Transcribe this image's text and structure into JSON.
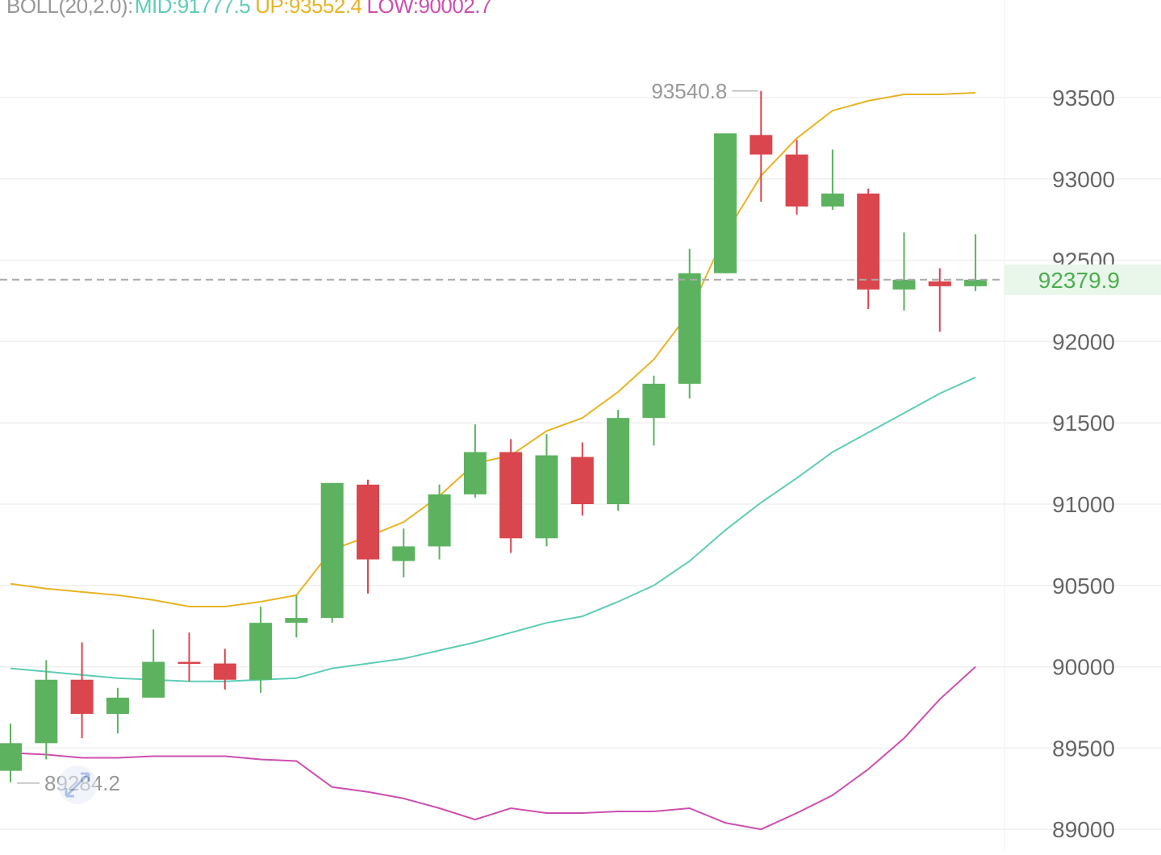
{
  "legend": {
    "name": "BOLL(20,2.0):",
    "mid_label": "MID:",
    "mid": "91777.5",
    "up_label": "UP:",
    "up": "93552.4",
    "low_label": "LOW:",
    "low": "90002.7"
  },
  "colors": {
    "up_candle": "#5cb25f",
    "down_candle": "#d9464d",
    "mid_line": "#5ecdb5",
    "upper_line": "#e8b425",
    "lower_line": "#cc4fb0",
    "grid": "#efefef",
    "current_price": "#4caf50",
    "legend_name": "#999999"
  },
  "chart_data": {
    "type": "candlestick",
    "y_ticks": [
      93500,
      93000,
      92500,
      92000,
      91500,
      91000,
      90500,
      90000,
      89500,
      89000
    ],
    "ylim": [
      88990,
      93600
    ],
    "grid": true,
    "current_price": "92379.9",
    "current_price_value": 92379.9,
    "max_marker": {
      "label": "93540.8",
      "value": 93540.8,
      "index": 21
    },
    "min_marker": {
      "label": "89284.2",
      "value": 89284.2,
      "index": 0
    },
    "candles": [
      {
        "o": 89360,
        "c": 89530,
        "h": 89650,
        "l": 89290
      },
      {
        "o": 89530,
        "c": 89920,
        "h": 90040,
        "l": 89430
      },
      {
        "o": 89920,
        "c": 89710,
        "h": 90150,
        "l": 89560
      },
      {
        "o": 89710,
        "c": 89810,
        "h": 89870,
        "l": 89590
      },
      {
        "o": 89810,
        "c": 90030,
        "h": 90230,
        "l": 89810
      },
      {
        "o": 90030,
        "c": 90020,
        "h": 90210,
        "l": 89910
      },
      {
        "o": 90020,
        "c": 89920,
        "h": 90110,
        "l": 89860
      },
      {
        "o": 89920,
        "c": 90270,
        "h": 90370,
        "l": 89840
      },
      {
        "o": 90270,
        "c": 90300,
        "h": 90440,
        "l": 90180
      },
      {
        "o": 90300,
        "c": 91130,
        "h": 91130,
        "l": 90270
      },
      {
        "o": 91120,
        "c": 90660,
        "h": 91150,
        "l": 90450
      },
      {
        "o": 90650,
        "c": 90740,
        "h": 90850,
        "l": 90550
      },
      {
        "o": 90740,
        "c": 91060,
        "h": 91120,
        "l": 90660
      },
      {
        "o": 91060,
        "c": 91320,
        "h": 91490,
        "l": 91040
      },
      {
        "o": 91320,
        "c": 90790,
        "h": 91400,
        "l": 90700
      },
      {
        "o": 90790,
        "c": 91300,
        "h": 91430,
        "l": 90740
      },
      {
        "o": 91290,
        "c": 91000,
        "h": 91380,
        "l": 90930
      },
      {
        "o": 91000,
        "c": 91530,
        "h": 91580,
        "l": 90960
      },
      {
        "o": 91530,
        "c": 91740,
        "h": 91790,
        "l": 91360
      },
      {
        "o": 91740,
        "c": 92420,
        "h": 92570,
        "l": 91650
      },
      {
        "o": 92420,
        "c": 93280,
        "h": 93280,
        "l": 92420
      },
      {
        "o": 93270,
        "c": 93150,
        "h": 93540.8,
        "l": 92860
      },
      {
        "o": 93150,
        "c": 92830,
        "h": 93240,
        "l": 92780
      },
      {
        "o": 92830,
        "c": 92910,
        "h": 93180,
        "l": 92810
      },
      {
        "o": 92910,
        "c": 92320,
        "h": 92940,
        "l": 92200
      },
      {
        "o": 92320,
        "c": 92380,
        "h": 92670,
        "l": 92190
      },
      {
        "o": 92370,
        "c": 92340,
        "h": 92450,
        "l": 92060
      },
      {
        "o": 92340,
        "c": 92380,
        "h": 92660,
        "l": 92310
      }
    ],
    "series": [
      {
        "name": "UP",
        "values": [
          90510,
          90480,
          90460,
          90440,
          90410,
          90370,
          90370,
          90400,
          90440,
          90720,
          90800,
          90890,
          91050,
          91250,
          91300,
          91450,
          91530,
          91690,
          91890,
          92180,
          92660,
          93020,
          93250,
          93420,
          93480,
          93520,
          93520,
          93530
        ]
      },
      {
        "name": "MID",
        "values": [
          89990,
          89970,
          89950,
          89930,
          89920,
          89910,
          89910,
          89920,
          89930,
          89990,
          90020,
          90050,
          90100,
          90150,
          90210,
          90270,
          90310,
          90400,
          90500,
          90650,
          90840,
          91010,
          91160,
          91320,
          91440,
          91560,
          91680,
          91780
        ]
      },
      {
        "name": "LOW",
        "values": [
          89470,
          89460,
          89440,
          89440,
          89450,
          89450,
          89450,
          89430,
          89420,
          89260,
          89230,
          89190,
          89130,
          89060,
          89130,
          89100,
          89100,
          89110,
          89110,
          89130,
          89040,
          89000,
          89100,
          89210,
          89370,
          89560,
          89800,
          90000
        ]
      }
    ]
  }
}
